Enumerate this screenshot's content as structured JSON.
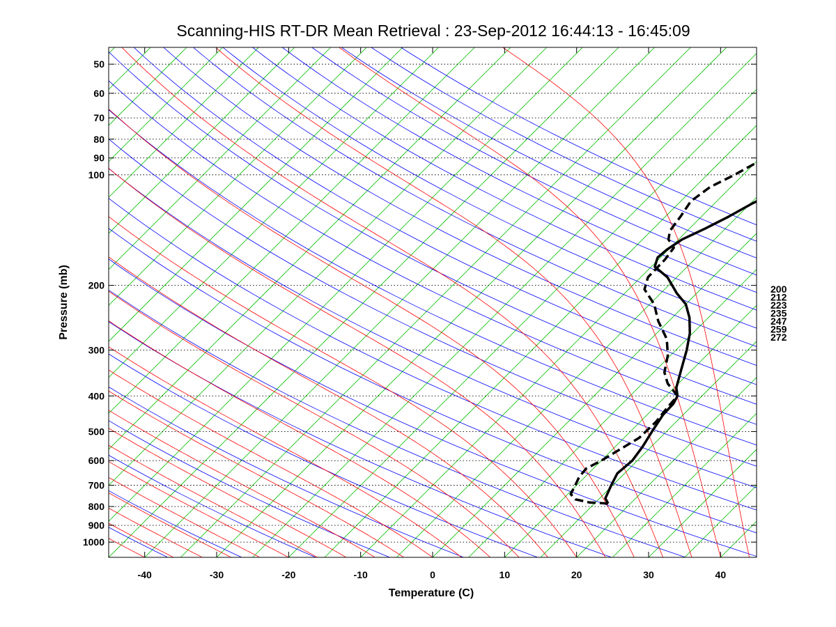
{
  "chart_data": {
    "type": "line",
    "subtype": "skew-T log-P thermodynamic diagram",
    "title": "Scanning-HIS RT-DR Mean Retrieval : 23-Sep-2012 16:44:13 - 16:45:09",
    "xlabel": "Temperature (C)",
    "ylabel": "Pressure (mb)",
    "xlim": [
      -45,
      45
    ],
    "ylim": [
      1100,
      45
    ],
    "x_ticks": [
      -40,
      -30,
      -20,
      -10,
      0,
      10,
      20,
      30,
      40
    ],
    "y_ticks": [
      50,
      60,
      70,
      80,
      90,
      100,
      200,
      300,
      400,
      500,
      600,
      700,
      800,
      900,
      1000
    ],
    "grid": "horizontal dotted at pressure ticks",
    "background_lines": {
      "dry_adiabats_color": "#0000ff",
      "moist_adiabats_color": "#ff0000",
      "isotherms_color": "#00c000",
      "moist_adiabat_overlay_color": "#8000a0",
      "side_labels": [
        "200",
        "212",
        "223",
        "235",
        "247",
        "259",
        "272"
      ]
    },
    "series": [
      {
        "name": "Temperature",
        "style": "solid",
        "color": "#000000",
        "points": [
          [
            785,
            16.9
          ],
          [
            760,
            15.8
          ],
          [
            700,
            14.8
          ],
          [
            650,
            14.0
          ],
          [
            600,
            14.3
          ],
          [
            550,
            13.8
          ],
          [
            500,
            13.0
          ],
          [
            450,
            12.2
          ],
          [
            420,
            12.1
          ],
          [
            400,
            11.6
          ],
          [
            380,
            10.3
          ],
          [
            340,
            8.5
          ],
          [
            300,
            6.5
          ],
          [
            270,
            4.6
          ],
          [
            245,
            2.4
          ],
          [
            225,
            0.0
          ],
          [
            210,
            -2.8
          ],
          [
            200,
            -4.5
          ],
          [
            190,
            -6.3
          ],
          [
            178,
            -9.5
          ],
          [
            168,
            -10.4
          ],
          [
            160,
            -10.2
          ],
          [
            150,
            -9.5
          ],
          [
            140,
            -7.8
          ],
          [
            130,
            -6.2
          ],
          [
            120,
            -4.8
          ],
          [
            110,
            -2.8
          ],
          [
            100,
            -0.8
          ],
          [
            90,
            2.2
          ],
          [
            80,
            5.8
          ],
          [
            70,
            10.5
          ],
          [
            60,
            14.5
          ],
          [
            50,
            18.2
          ],
          [
            45,
            20.4
          ]
        ]
      },
      {
        "name": "Dewpoint",
        "style": "dashed",
        "color": "#000000",
        "points": [
          [
            785,
            16.9
          ],
          [
            780,
            14.2
          ],
          [
            765,
            11.8
          ],
          [
            740,
            10.4
          ],
          [
            700,
            9.8
          ],
          [
            665,
            9.2
          ],
          [
            630,
            9.0
          ],
          [
            600,
            10.0
          ],
          [
            560,
            11.0
          ],
          [
            520,
            12.1
          ],
          [
            470,
            12.2
          ],
          [
            430,
            11.8
          ],
          [
            400,
            11.6
          ],
          [
            370,
            8.5
          ],
          [
            345,
            6.5
          ],
          [
            310,
            4.6
          ],
          [
            280,
            2.2
          ],
          [
            250,
            -1.5
          ],
          [
            225,
            -4.4
          ],
          [
            205,
            -7.8
          ],
          [
            190,
            -9.0
          ],
          [
            170,
            -9.1
          ],
          [
            158,
            -9.5
          ],
          [
            150,
            -11.4
          ],
          [
            142,
            -12.4
          ],
          [
            130,
            -12.9
          ],
          [
            118,
            -13.6
          ],
          [
            108,
            -12.9
          ],
          [
            100,
            -11.2
          ],
          [
            90,
            -9.3
          ],
          [
            80,
            -6.9
          ],
          [
            70,
            -3.8
          ],
          [
            60,
            -0.5
          ],
          [
            50,
            2.9
          ],
          [
            45,
            4.8
          ]
        ]
      }
    ]
  }
}
